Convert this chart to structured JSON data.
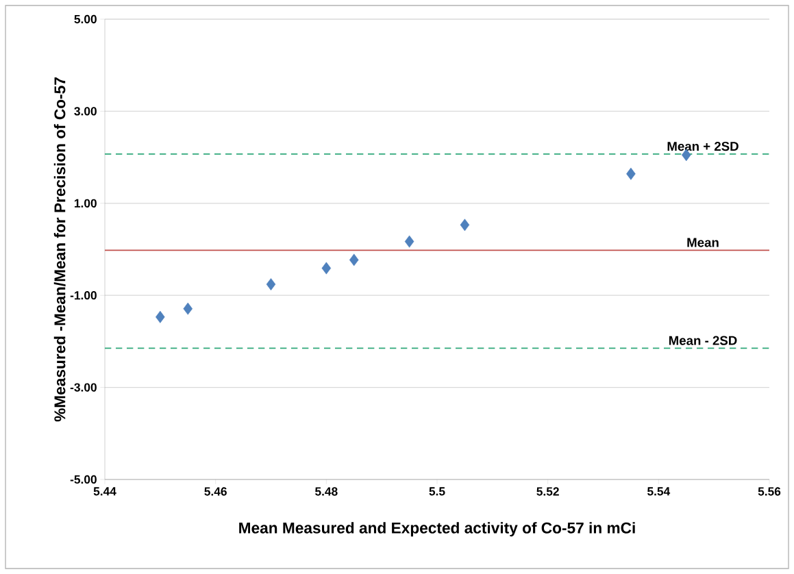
{
  "chart_data": {
    "type": "scatter",
    "xlabel": "Mean Measured and Expected activity of Co-57 in mCi",
    "ylabel": "%Measured -Mean/Mean for Precision of Co-57",
    "x": [
      5.45,
      5.455,
      5.47,
      5.48,
      5.485,
      5.495,
      5.505,
      5.535,
      5.545
    ],
    "series": [
      {
        "color": "#4f81bd",
        "values": [
          -1.47,
          -1.29,
          -0.76,
          -0.41,
          -0.23,
          0.17,
          0.53,
          1.64,
          2.05
        ]
      }
    ],
    "marker": "diamond",
    "xlim": [
      5.44,
      5.56
    ],
    "xticks": [
      5.44,
      5.46,
      5.48,
      5.5,
      5.52,
      5.54,
      5.56
    ],
    "ylim": [
      -5,
      5
    ],
    "yticks": [
      {
        "value": -5,
        "label": "-5.00"
      },
      {
        "value": -3,
        "label": "-3.00"
      },
      {
        "value": -1,
        "label": "-1.00"
      },
      {
        "value": 1,
        "label": "1.00"
      },
      {
        "value": 3,
        "label": "3.00"
      },
      {
        "value": 5,
        "label": "5.00"
      }
    ],
    "grid": "y",
    "ref_lines": [
      {
        "axis": "y",
        "value": 2.07,
        "label": "Mean + 2SD",
        "color": "#2ea87a",
        "line_style": "dashed"
      },
      {
        "axis": "y",
        "value": -0.02,
        "label": "Mean",
        "color": "#c0504d",
        "line_style": "solid"
      },
      {
        "axis": "y",
        "value": -2.15,
        "label": "Mean - 2SD",
        "color": "#2ea87a",
        "line_style": "dashed"
      }
    ]
  }
}
